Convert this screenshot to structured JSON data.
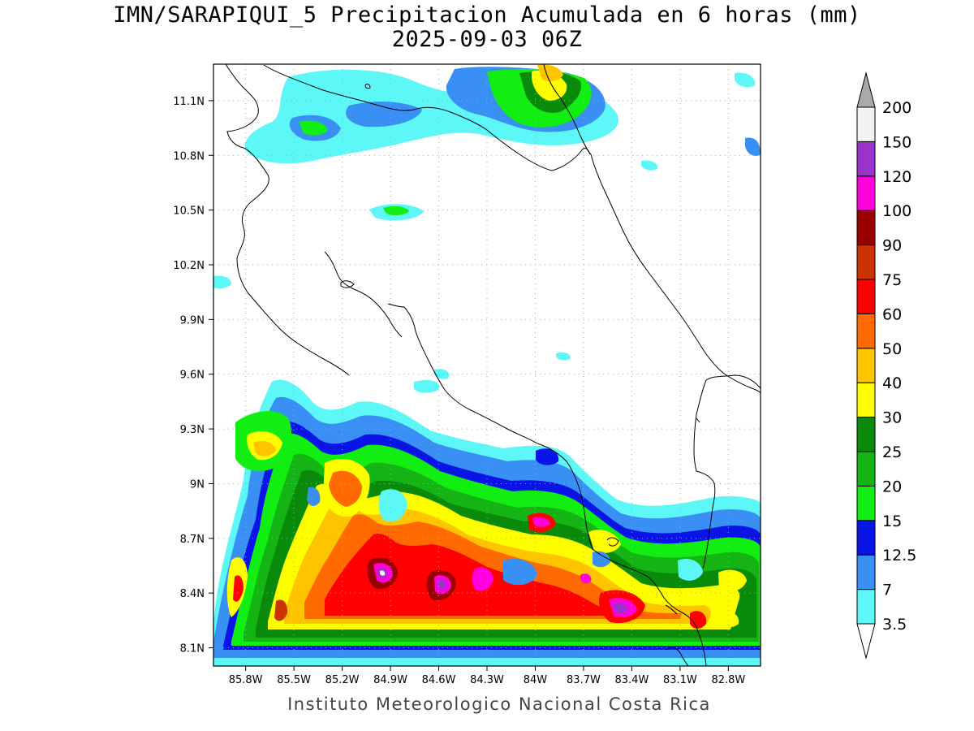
{
  "title": {
    "line1": "IMN/SARAPIQUI_5 Precipitacion Acumulada en 6 horas (mm)",
    "line2": "2025-09-03 06Z"
  },
  "footer": "Instituto Meteorologico Nacional Costa Rica",
  "map": {
    "lon_range": [
      -86.0,
      -82.6
    ],
    "lat_range": [
      8.0,
      11.3
    ],
    "x_tick_labels": [
      "85.8W",
      "85.5W",
      "85.2W",
      "84.9W",
      "84.6W",
      "84.3W",
      "84W",
      "83.7W",
      "83.4W",
      "83.1W",
      "82.8W"
    ],
    "y_tick_labels": [
      "8.1N",
      "8.4N",
      "8.7N",
      "9N",
      "9.3N",
      "9.6N",
      "9.9N",
      "10.2N",
      "10.5N",
      "10.8N",
      "11.1N"
    ],
    "grid": "dotted"
  },
  "colorbar": {
    "labels": [
      "3.5",
      "7",
      "12.5",
      "15",
      "20",
      "25",
      "30",
      "40",
      "50",
      "60",
      "75",
      "90",
      "100",
      "120",
      "150",
      "200"
    ],
    "colors": [
      "#ffffff",
      "#5ef7f7",
      "#3a8ff5",
      "#0a14e6",
      "#12ee12",
      "#14b414",
      "#0a8a0a",
      "#ffff00",
      "#ffc400",
      "#ff6a00",
      "#ff0000",
      "#cc3300",
      "#990000",
      "#ff00dd",
      "#9933cc",
      "#f2f2f2",
      "#aaaaaa"
    ]
  }
}
